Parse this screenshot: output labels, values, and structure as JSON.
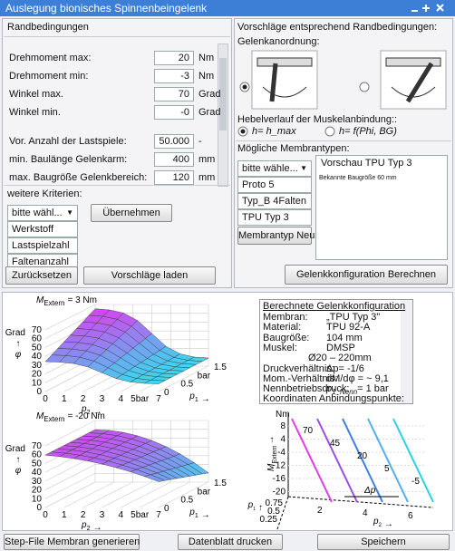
{
  "window": {
    "title": "Auslegung bionisches Spinnenbeingelenk"
  },
  "constraints": {
    "heading": "Randbedingungen",
    "fields": [
      {
        "label": "Drehmoment max:",
        "value": "20",
        "unit": "Nm"
      },
      {
        "label": "Drehmoment min:",
        "value": "-3",
        "unit": "Nm"
      },
      {
        "label": "Winkel max.",
        "value": "70",
        "unit": "Grad"
      },
      {
        "label": "Winkel min.",
        "value": "-0",
        "unit": "Grad"
      },
      {
        "label": "Vor. Anzahl der Lastspiele:",
        "value": "50.000",
        "unit": "-"
      },
      {
        "label": "min. Baulänge Gelenkarm:",
        "value": "400",
        "unit": "mm"
      },
      {
        "label": "max. Baugröße Gelenkbereich:",
        "value": "120",
        "unit": "mm"
      }
    ],
    "criteria_label": "weitere Kriterien:",
    "criteria_dropdown": "bitte wähl...",
    "apply_button": "Übernehmen",
    "criteria_options": [
      "Werkstoff",
      "Lastspielzahl",
      "Faltenanzahl"
    ],
    "reset_button": "Zurücksetzen",
    "load_button": "Vorschläge laden"
  },
  "proposals": {
    "heading": "Vorschläge entsprechend Randbedingungen:",
    "arrangement_label": "Gelenkanordnung:",
    "lever_label": "Hebelverlauf der Muskelanbindung::",
    "lever_options": [
      "h= h_max",
      "h= f(Phi, BG)"
    ],
    "membrane_label": "Mögliche Membrantypen:",
    "membrane_dropdown": "bitte wähle...",
    "membrane_types": [
      "Proto 5",
      "Typ_B 4Falten",
      "TPU Typ 3"
    ],
    "new_button": "Membrantyp Neu",
    "preview_title": "Vorschau TPU Typ 3",
    "preview_caption": "Bekannte Baugröße 60 mm",
    "compute_button": "Gelenkkonfiguration Berechnen"
  },
  "plots": [
    {
      "label": {
        "symbol": "M",
        "subscript": "Extern",
        "text": "= 3 Nm"
      },
      "z_label": {
        "unit": "Grad",
        "arrow": "↑",
        "symbol": "φ"
      },
      "z_ticks": [
        "70",
        "60",
        "50",
        "40",
        "30",
        "20",
        "10",
        "0"
      ],
      "x_ticks": [
        "0",
        "1",
        "2",
        "3",
        "4",
        "5bar",
        "7"
      ],
      "x_label": {
        "symbol": "p",
        "subscript": "2",
        "arrow": "→"
      },
      "y_ticks": [
        "1.5",
        "bar",
        "0.5",
        "0"
      ],
      "y_label": {
        "symbol": "p",
        "subscript": "1",
        "arrow": "→"
      }
    },
    {
      "label": {
        "symbol": "M",
        "subscript": "Extern",
        "text": "= -20 Nm"
      },
      "z_label": {
        "unit": "Grad",
        "arrow": "↑",
        "symbol": "φ"
      },
      "z_ticks": [
        "70",
        "60",
        "50",
        "40",
        "30",
        "20",
        "10",
        "0"
      ],
      "x_ticks": [
        "0",
        "1",
        "2",
        "3",
        "4",
        "5bar",
        "7"
      ],
      "x_label": {
        "symbol": "p",
        "subscript": "2",
        "arrow": "→"
      },
      "y_ticks": [
        "1.5",
        "bar",
        "0.5",
        "0"
      ],
      "y_label": {
        "symbol": "p",
        "subscript": "1",
        "arrow": "→"
      }
    }
  ],
  "config": {
    "heading": "Berechnete Gelenkkonfiguration",
    "rows": [
      {
        "label": "Membran:",
        "value": "„TPU Typ 3\""
      },
      {
        "label": "Material:",
        "value": "TPU 92-A"
      },
      {
        "label": "Baugröße:",
        "value": "104 mm"
      },
      {
        "label": "Muskel:",
        "value": "DMSP"
      },
      {
        "value": "Ø20 – 220mm"
      },
      {
        "label": "Druckverhältnis:",
        "value": "Δp= -1/6"
      },
      {
        "label": "Mom.-Verhältnis:",
        "value": "dM/dφ = ~ 9,1"
      },
      {
        "label": "Nennbetriebsdruck:",
        "value": "p",
        "value_subscript": "1_Nenn",
        "value_tail": "= 1 bar"
      },
      {
        "label": "Koordinaten Anbindungspunkte:"
      }
    ]
  },
  "diagram": {
    "y_unit": "Nm",
    "y_label": {
      "symbol": "M",
      "subscript": "Extern",
      "arrow": "↑"
    },
    "y_ticks": [
      "8",
      "4",
      "-4",
      "-12",
      "-16",
      "-20"
    ],
    "curve_labels": [
      "70",
      "45",
      "20",
      "5",
      "-5"
    ],
    "dp_label": "Δp",
    "x_ticks": [
      "2",
      "4",
      "6"
    ],
    "x_label": {
      "symbol": "p",
      "subscript": "2",
      "arrow": "→"
    },
    "p1_ticks": [
      "0.75",
      "0.5",
      "0.25"
    ],
    "p1_label": {
      "symbol": "p",
      "subscript": "1",
      "arrow": "↑"
    }
  },
  "footer": {
    "buttons": [
      "Step-File Membran generieren",
      "Datenblatt drucken",
      "Speichern"
    ]
  }
}
